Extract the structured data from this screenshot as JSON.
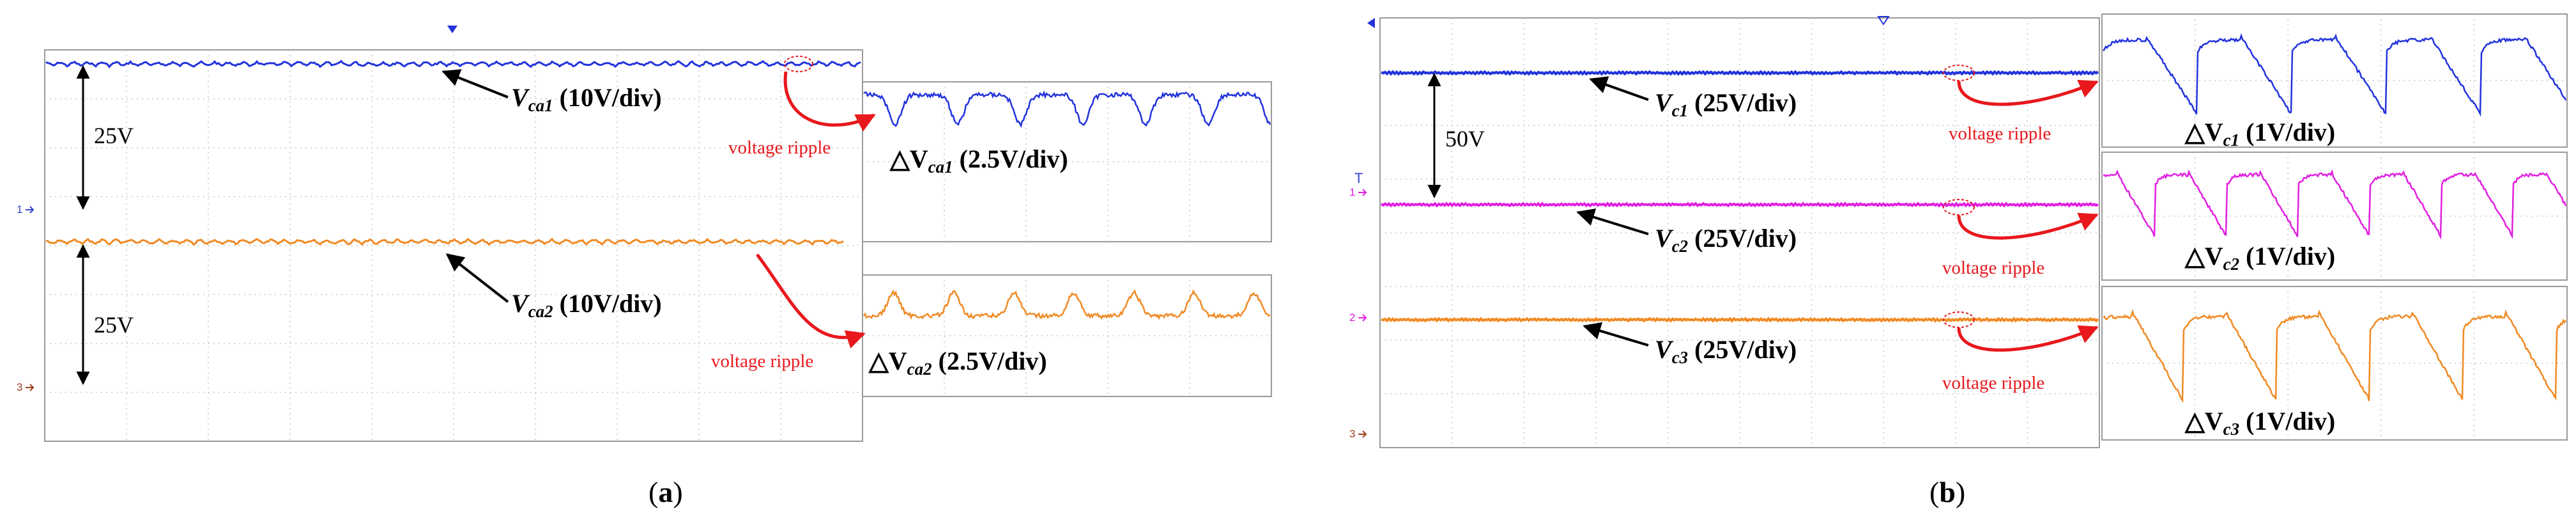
{
  "figure": {
    "panel_a": {
      "caption_open": "(",
      "caption_letter": "a",
      "caption_close": ")",
      "ch1_marker": "1",
      "ch3_marker": "3",
      "gap_label": "25V",
      "gap_label_2": "25V",
      "trace1_label_sym": "V",
      "trace1_label_sub": "ca1",
      "trace1_label_scale": " (10V/div)",
      "trace2_label_sym": "V",
      "trace2_label_sub": "ca2",
      "trace2_label_scale": " (10V/div)",
      "ripple_note_1": "voltage ripple",
      "ripple_note_2": "voltage ripple",
      "zoom1_label_sym": "△V",
      "zoom1_label_sub": "ca1",
      "zoom1_label_scale": " (2.5V/div)",
      "zoom2_label_sym": "△V",
      "zoom2_label_sub": "ca2",
      "zoom2_label_scale": " (2.5V/div)"
    },
    "panel_b": {
      "caption_open": "(",
      "caption_letter": "b",
      "caption_close": ")",
      "ch1_marker": "1",
      "ch2_marker": "2",
      "ch3_marker": "3",
      "trigger_marker": "T",
      "gap_label": "50V",
      "trace1_label_sym": "V",
      "trace1_label_sub": "c1",
      "trace1_label_scale": " (25V/div)",
      "trace2_label_sym": "V",
      "trace2_label_sub": "c2",
      "trace2_label_scale": " (25V/div)",
      "trace3_label_sym": "V",
      "trace3_label_sub": "c3",
      "trace3_label_scale": " (25V/div)",
      "ripple_note_1": "voltage ripple",
      "ripple_note_2": "voltage ripple",
      "ripple_note_3": "voltage ripple",
      "zoom1_label_sym": "△V",
      "zoom1_label_sub": "c1",
      "zoom1_label_scale": " (1V/div)",
      "zoom2_label_sym": "△V",
      "zoom2_label_sub": "c2",
      "zoom2_label_scale": " (1V/div)",
      "zoom3_label_sym": "△V",
      "zoom3_label_sub": "c3",
      "zoom3_label_scale": " (1V/div)"
    }
  },
  "colors": {
    "blue": "#2233dd",
    "orange": "#f08a24",
    "magenta": "#e020e0",
    "red": "#e8181c",
    "grid": "#c8c8c8",
    "frame": "#9a9a9a",
    "ch1": "#3344cc",
    "ch3": "#a04020",
    "ch2": "#e020e0"
  },
  "chart_data": [
    {
      "type": "line",
      "name": "panel (a) oscilloscope",
      "series": [
        {
          "name": "Vca1",
          "scale": "10V/div",
          "color": "blue"
        },
        {
          "name": "Vca2",
          "scale": "10V/div",
          "color": "orange"
        }
      ],
      "annotations": [
        "25V",
        "25V",
        "voltage ripple",
        "voltage ripple"
      ],
      "grid": true
    },
    {
      "type": "line",
      "name": "panel (a) ripple zoom",
      "series": [
        {
          "name": "△Vca1",
          "scale": "2.5V/div",
          "color": "blue"
        },
        {
          "name": "△Vca2",
          "scale": "2.5V/div",
          "color": "orange"
        }
      ],
      "grid": true
    },
    {
      "type": "line",
      "name": "panel (b) oscilloscope",
      "series": [
        {
          "name": "Vc1",
          "scale": "25V/div",
          "color": "blue"
        },
        {
          "name": "Vc2",
          "scale": "25V/div",
          "color": "magenta"
        },
        {
          "name": "Vc3",
          "scale": "25V/div",
          "color": "orange"
        }
      ],
      "annotations": [
        "50V",
        "voltage ripple",
        "voltage ripple",
        "voltage ripple"
      ],
      "grid": true
    },
    {
      "type": "line",
      "name": "panel (b) ripple zoom",
      "series": [
        {
          "name": "△Vc1",
          "scale": "1V/div",
          "color": "blue"
        },
        {
          "name": "△Vc2",
          "scale": "1V/div",
          "color": "magenta"
        },
        {
          "name": "△Vc3",
          "scale": "1V/div",
          "color": "orange"
        }
      ],
      "grid": true
    }
  ]
}
